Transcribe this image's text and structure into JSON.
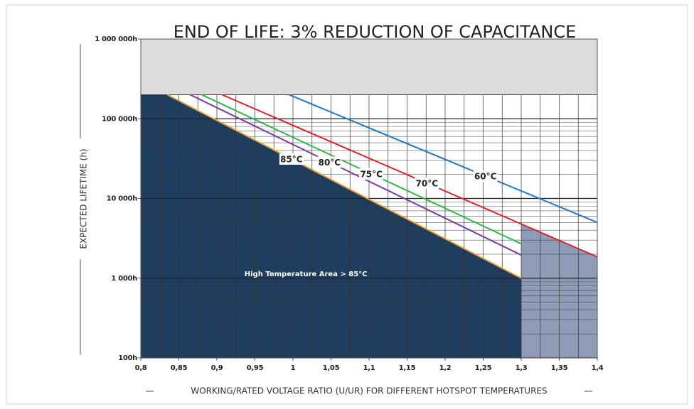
{
  "chart_data": {
    "type": "line",
    "title": "END OF LIFE: 3% REDUCTION OF CAPACITANCE",
    "xlabel": "WORKING/RATED VOLTAGE RATIO (U/UR) FOR DIFFERENT HOTSPOT TEMPERATURES",
    "ylabel": "EXPECTED LIFETIME (h)",
    "xlim": [
      0.8,
      1.4
    ],
    "xticks": [
      {
        "value": 0.8,
        "label": "0,8"
      },
      {
        "value": 0.85,
        "label": "0,85"
      },
      {
        "value": 0.9,
        "label": "0,9"
      },
      {
        "value": 0.95,
        "label": "0,95"
      },
      1,
      {
        "value": 1.05,
        "label": "1,05"
      },
      {
        "value": 1.1,
        "label": "1,1"
      },
      {
        "value": 1.15,
        "label": "1,15"
      },
      {
        "value": 1.2,
        "label": "1,2"
      },
      {
        "value": 1.25,
        "label": "1,25"
      },
      {
        "value": 1.3,
        "label": "1,3"
      },
      {
        "value": 1.35,
        "label": "1,35"
      },
      {
        "value": 1.4,
        "label": "1,4"
      }
    ],
    "ylim": [
      100,
      1000000
    ],
    "yscale": "log",
    "yticks": [
      {
        "value": 100,
        "label": "100h"
      },
      {
        "value": 1000,
        "label": "1 000h"
      },
      {
        "value": 10000,
        "label": "10 000h"
      },
      {
        "value": 100000,
        "label": "100 000h"
      },
      {
        "value": 1000000,
        "label": "1 000 000h"
      }
    ],
    "grid": true,
    "shaded_above": 200000,
    "series": [
      {
        "name": "60°C",
        "color": "#1f78c8",
        "x": [
          0.995,
          1.4
        ],
        "values": [
          200000,
          5000
        ],
        "label_x": 1.253
      },
      {
        "name": "70°C",
        "color": "#e0202a",
        "x": [
          0.907,
          1.4
        ],
        "values": [
          200000,
          1850
        ],
        "label_x": 1.176,
        "fill": "#8e9cb8",
        "fill_from": 1.3
      },
      {
        "name": "75°C",
        "color": "#2db84a",
        "x": [
          0.88,
          1.3
        ],
        "values": [
          200000,
          2700
        ],
        "label_x": 1.103
      },
      {
        "name": "80°C",
        "color": "#7a3aa8",
        "x": [
          0.865,
          1.3
        ],
        "values": [
          200000,
          1950
        ],
        "label_x": 1.048
      },
      {
        "name": "85°C",
        "color": "#f0a030",
        "x": [
          0.835,
          1.3
        ],
        "values": [
          200000,
          1000
        ],
        "label_x": 0.998,
        "fill": "#1f3d5e"
      }
    ],
    "annotations": [
      {
        "text": "High Temperature Area > 85°C",
        "x": 1.017,
        "y": 1000
      }
    ]
  }
}
